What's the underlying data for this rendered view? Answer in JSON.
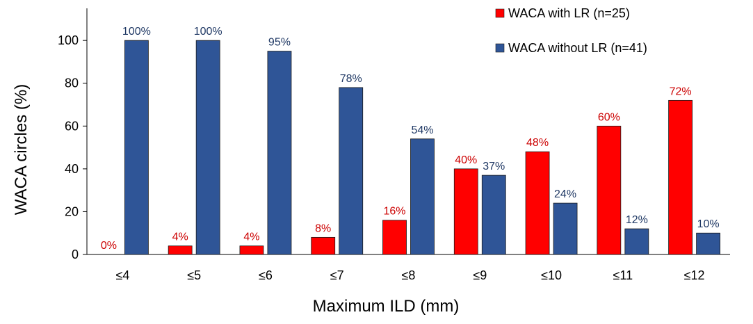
{
  "chart_data": {
    "type": "bar",
    "title": "",
    "xlabel": "Maximum ILD (mm)",
    "ylabel": "WACA circles (%)",
    "ylim": [
      0,
      115
    ],
    "yticks": [
      0,
      20,
      40,
      60,
      80,
      100
    ],
    "grid": false,
    "legend_position": "top-right",
    "categories": [
      "≤4",
      "≤5",
      "≤6",
      "≤7",
      "≤8",
      "≤9",
      "≤10",
      "≤11",
      "≤12"
    ],
    "series": [
      {
        "name": "WACA with LR (n=25)",
        "color": "#ff0000",
        "label_color": "#cc0000",
        "values": [
          0,
          4,
          4,
          8,
          16,
          40,
          48,
          60,
          72
        ],
        "data_labels": [
          "0%",
          "4%",
          "4%",
          "8%",
          "16%",
          "40%",
          "48%",
          "60%",
          "72%"
        ]
      },
      {
        "name": "WACA without LR (n=41)",
        "color": "#2f5597",
        "label_color": "#1f3864",
        "values": [
          100,
          100,
          95,
          78,
          54,
          37,
          24,
          12,
          10
        ],
        "data_labels": [
          "100%",
          "100%",
          "95%",
          "78%",
          "54%",
          "37%",
          "24%",
          "12%",
          "10%"
        ]
      }
    ]
  }
}
